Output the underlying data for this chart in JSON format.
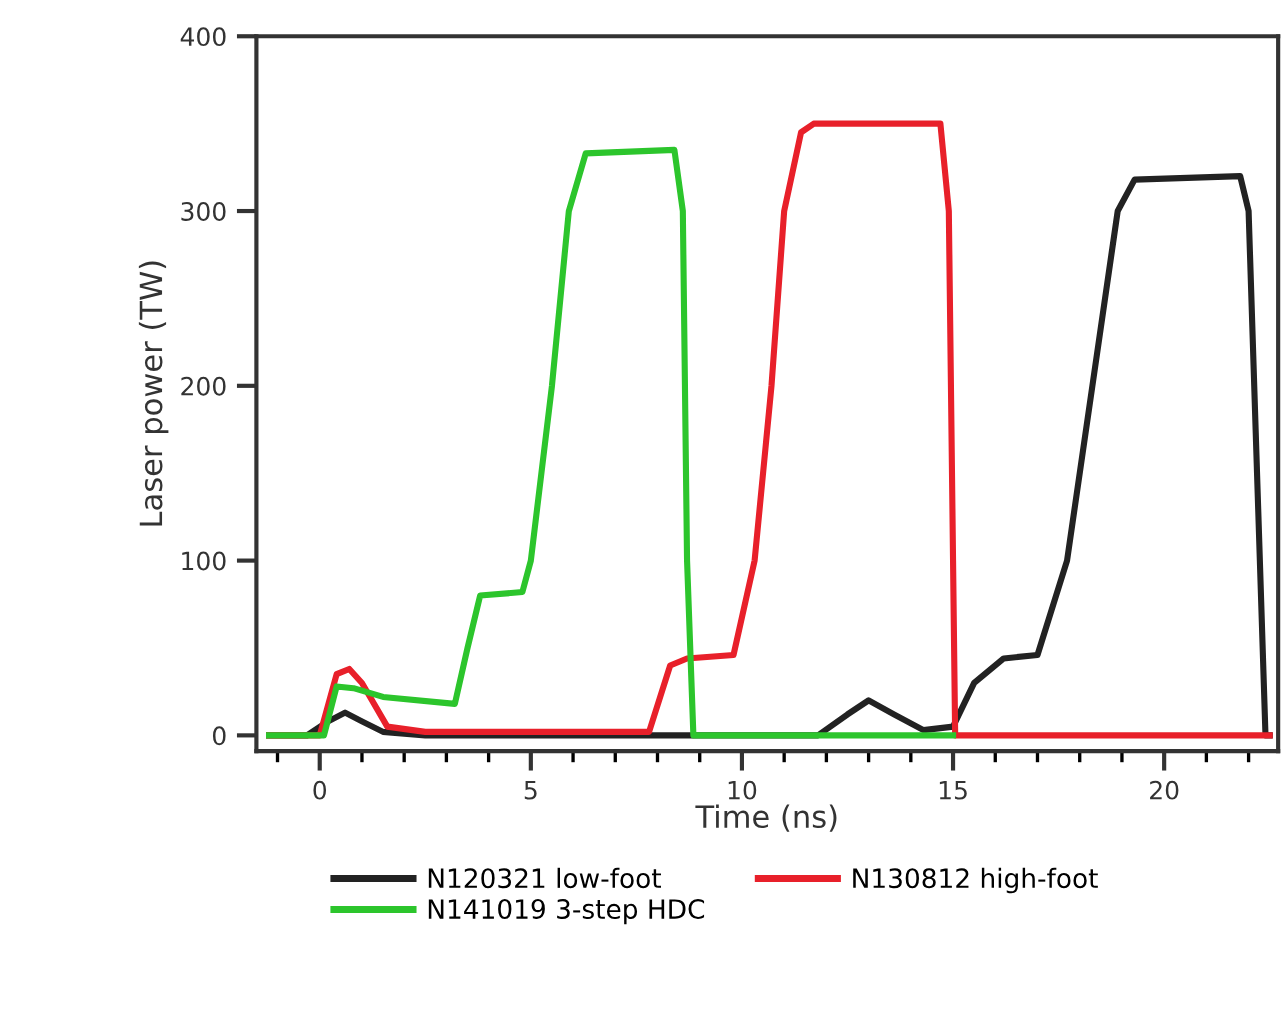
{
  "chart_data": {
    "type": "line",
    "xlabel": "Time (ns)",
    "ylabel": "Laser power (TW)",
    "xlim": [
      -1.5,
      22.7
    ],
    "ylim": [
      -9,
      400
    ],
    "xticks": [
      0,
      5,
      10,
      15,
      20
    ],
    "yticks": [
      0,
      100,
      200,
      300,
      400
    ],
    "grid": false,
    "legend": "bottom",
    "marker": "none",
    "line_style": "solid",
    "series": [
      {
        "name": "N120321 low-foot",
        "color": "#222222",
        "x": [
          -1.2,
          -0.3,
          0.2,
          0.6,
          1.0,
          1.5,
          2.5,
          11.8,
          12.5,
          13.0,
          13.6,
          14.3,
          15.0,
          15.5,
          16.2,
          17.0,
          17.7,
          18.3,
          18.9,
          19.3,
          21.8,
          22.0,
          22.4,
          22.5
        ],
        "values": [
          0,
          0,
          8,
          13,
          8,
          2,
          0,
          0,
          12,
          20,
          12,
          3,
          5,
          30,
          44,
          46,
          100,
          200,
          300,
          318,
          320,
          300,
          0,
          0
        ]
      },
      {
        "name": "N130812 high-foot",
        "color": "#e8202a",
        "x": [
          -1.2,
          0.0,
          0.4,
          0.7,
          1.0,
          1.6,
          2.5,
          7.8,
          8.3,
          8.7,
          9.8,
          10.3,
          10.7,
          11.0,
          11.4,
          11.7,
          14.7,
          14.9,
          15.0,
          15.05,
          22.5
        ],
        "values": [
          0,
          0,
          35,
          38,
          30,
          5,
          2,
          2,
          40,
          44,
          46,
          100,
          200,
          300,
          345,
          350,
          350,
          300,
          100,
          0,
          0
        ]
      },
      {
        "name": "N141019 3-step HDC",
        "color": "#2cc52c",
        "x": [
          -1.2,
          0.1,
          0.4,
          0.8,
          1.5,
          3.2,
          3.5,
          3.8,
          4.8,
          5.0,
          5.5,
          5.9,
          6.3,
          8.4,
          8.6,
          8.7,
          8.85,
          15.0
        ],
        "values": [
          0,
          0,
          28,
          27,
          22,
          18,
          50,
          80,
          82,
          100,
          200,
          300,
          333,
          335,
          300,
          100,
          0,
          0
        ]
      }
    ]
  }
}
